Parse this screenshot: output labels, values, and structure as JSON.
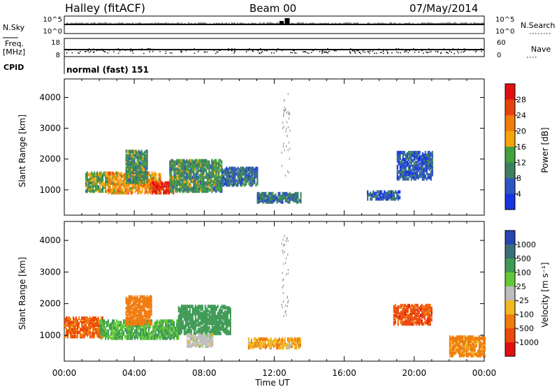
{
  "header": {
    "station": "Halley (fitACF)",
    "beam": "Beam 00",
    "date": "07/May/2014"
  },
  "strips": {
    "nsky": {
      "label": "N.Sky",
      "tick_top": "10^5",
      "tick_bottom": "10^0"
    },
    "nsearch": {
      "label": "N.Search",
      "tick_top": "10^5",
      "tick_bottom": "10^0"
    },
    "freq": {
      "label": "Freq.",
      "unit": "[MHz]",
      "tick_top": "18",
      "tick_bottom": "8"
    },
    "nave": {
      "label": "Nave",
      "tick_top": "60",
      "tick_bottom": "0"
    },
    "cpid": {
      "label": "CPID",
      "value": "normal (fast) 151"
    }
  },
  "chart_data": [
    {
      "type": "heatmap",
      "title": "",
      "ylabel": "Slant Range [km]",
      "xlabel": "",
      "ylim": [
        180,
        4600
      ],
      "yticks": [
        1000,
        2000,
        3000,
        4000
      ],
      "xticks": [
        "00:00",
        "04:00",
        "08:00",
        "12:00",
        "16:00",
        "20:00",
        "00:00"
      ],
      "colorbar": {
        "label": "Power [dB]",
        "ticks": [
          4,
          8,
          12,
          16,
          20,
          24,
          28
        ],
        "colors": [
          "#1633e0",
          "#2f55c2",
          "#3d8060",
          "#44a03f",
          "#f5a40a",
          "#f07a0c",
          "#e8420c",
          "#e01010"
        ]
      },
      "regions": [
        {
          "t": [
            1.2,
            2.6
          ],
          "r": [
            900,
            1500
          ],
          "value": 14
        },
        {
          "t": [
            2.5,
            5.5
          ],
          "r": [
            850,
            1500
          ],
          "value": 20
        },
        {
          "t": [
            5.0,
            6.2
          ],
          "r": [
            850,
            1200
          ],
          "value": 28
        },
        {
          "t": [
            3.5,
            4.7
          ],
          "r": [
            1200,
            2200
          ],
          "value": 12
        },
        {
          "t": [
            6.0,
            9.0
          ],
          "r": [
            900,
            1900
          ],
          "value": 12
        },
        {
          "t": [
            9.0,
            11.0
          ],
          "r": [
            1100,
            1650
          ],
          "value": 8
        },
        {
          "t": [
            11.0,
            13.5
          ],
          "r": [
            550,
            850
          ],
          "value": 8
        },
        {
          "t": [
            17.3,
            19.2
          ],
          "r": [
            650,
            900
          ],
          "value": 6
        },
        {
          "t": [
            19.0,
            21.0
          ],
          "r": [
            1300,
            2200
          ],
          "value": 6
        }
      ]
    },
    {
      "type": "heatmap",
      "title": "",
      "ylabel": "Slant Range [km]",
      "xlabel": "Time UT",
      "ylim": [
        180,
        4600
      ],
      "yticks": [
        1000,
        2000,
        3000,
        4000
      ],
      "xticks": [
        "00:00",
        "04:00",
        "08:00",
        "12:00",
        "16:00",
        "20:00",
        "00:00"
      ],
      "colorbar": {
        "label": "Velocity [m s⁻¹]",
        "ticks": [
          "1000",
          "500",
          "100",
          "25",
          "-25",
          "-100",
          "-500",
          "-1000"
        ],
        "colors": [
          "#2a44b0",
          "#3a6e7a",
          "#3e9a55",
          "#62c837",
          "#bdbdbd",
          "#f2b820",
          "#f07c10",
          "#ec4a0c",
          "#e01010"
        ]
      },
      "regions": [
        {
          "t": [
            0.0,
            2.2
          ],
          "r": [
            900,
            1500
          ],
          "value": -500
        },
        {
          "t": [
            2.0,
            6.5
          ],
          "r": [
            850,
            1400
          ],
          "value": 100
        },
        {
          "t": [
            3.5,
            5.0
          ],
          "r": [
            1300,
            2200
          ],
          "value": -300
        },
        {
          "t": [
            6.5,
            9.5
          ],
          "r": [
            1000,
            1900
          ],
          "value": 300
        },
        {
          "t": [
            7.0,
            8.5
          ],
          "r": [
            600,
            1000
          ],
          "value": 0
        },
        {
          "t": [
            10.5,
            13.5
          ],
          "r": [
            550,
            850
          ],
          "value": -80
        },
        {
          "t": [
            18.8,
            21.0
          ],
          "r": [
            1300,
            1900
          ],
          "value": -700
        },
        {
          "t": [
            22.0,
            24.0
          ],
          "r": [
            300,
            900
          ],
          "value": -150
        }
      ]
    }
  ]
}
